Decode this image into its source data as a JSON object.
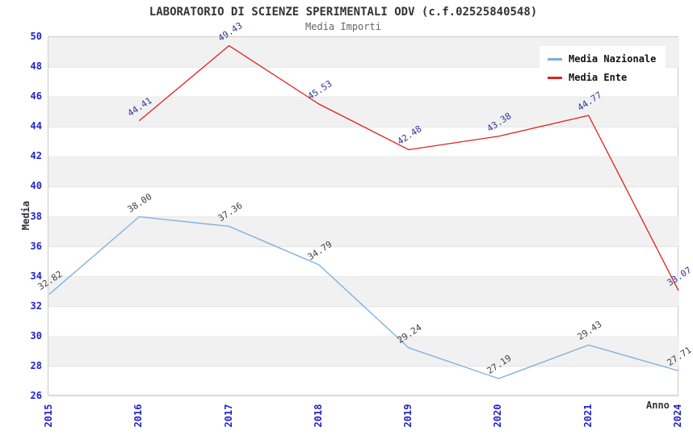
{
  "header": {
    "title": "LABORATORIO DI SCIENZE SPERIMENTALI ODV (c.f.02525840548)",
    "subtitle": "Media Importi"
  },
  "chart_data": {
    "type": "line",
    "title": "LABORATORIO DI SCIENZE SPERIMENTALI ODV (c.f.02525840548)",
    "subtitle": "Media Importi",
    "xlabel": "Anno",
    "ylabel": "Media",
    "categories": [
      "2015",
      "2016",
      "2017",
      "2018",
      "2019",
      "2020",
      "2021",
      "2024"
    ],
    "series": [
      {
        "name": "Media Nazionale",
        "color": "#7aaede",
        "label_color": "#404040",
        "values": [
          32.82,
          38.0,
          37.36,
          34.79,
          29.24,
          27.19,
          29.43,
          27.71
        ]
      },
      {
        "name": "Media Ente",
        "color": "#e02222",
        "label_color": "#333399",
        "values": [
          null,
          44.41,
          49.43,
          45.53,
          42.48,
          43.38,
          44.77,
          33.07
        ]
      }
    ],
    "ylim": [
      26,
      50
    ],
    "ytick_step": 2,
    "grid": "horizontal-bands",
    "legend_position": "top-right",
    "colors": {
      "tick_label": "#2222cc",
      "band_fill": "#f1f1f1",
      "grid_line": "#e2e2e2",
      "plot_border": "#cccccc"
    }
  }
}
